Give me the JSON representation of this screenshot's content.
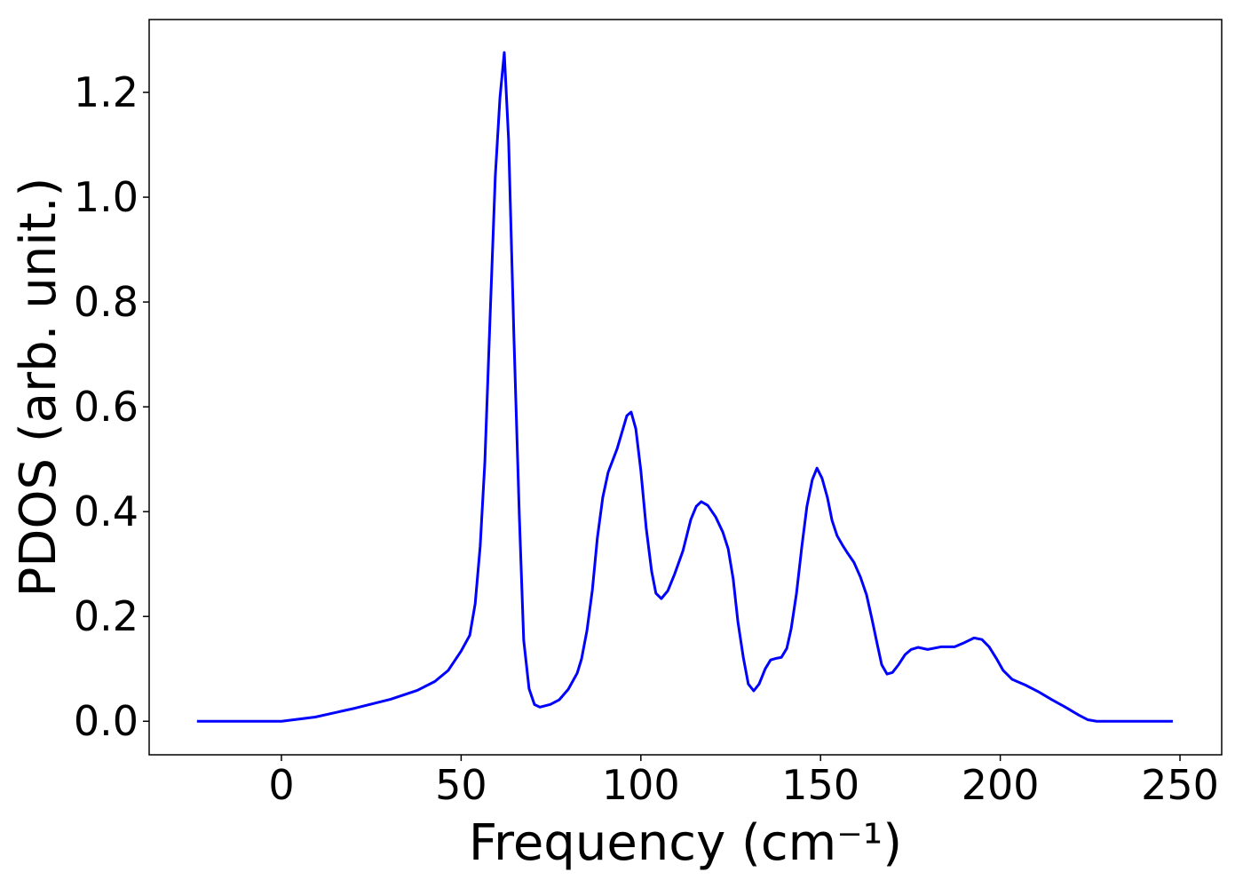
{
  "chart_data": {
    "type": "line",
    "xlabel": "Frequency (cm⁻¹)",
    "ylabel": "PDOS (arb. unit.)",
    "xlim": [
      -36.8,
      261.6
    ],
    "ylim": [
      -0.064,
      1.339
    ],
    "xticks": [
      0,
      50,
      100,
      150,
      200,
      250
    ],
    "yticks": [
      {
        "value": 0,
        "label": "0.0"
      },
      {
        "value": 0.2,
        "label": "0.2"
      },
      {
        "value": 0.4,
        "label": "0.4"
      },
      {
        "value": 0.6,
        "label": "0.6"
      },
      {
        "value": 0.8,
        "label": "0.8"
      },
      {
        "value": 1.0,
        "label": "1.0"
      },
      {
        "value": 1.2,
        "label": "1.2"
      }
    ],
    "grid": false,
    "series": [
      {
        "color": "#0000ff",
        "x": [
          -23.5,
          0,
          9.4,
          20.5,
          30.4,
          37.8,
          42.7,
          46.4,
          50,
          52.4,
          53.9,
          55.3,
          56.6,
          58.1,
          59.5,
          60.8,
          62.0,
          63.2,
          64.7,
          66.2,
          67.4,
          68.9,
          70.4,
          71.9,
          74.8,
          77.3,
          79.8,
          82.3,
          83.5,
          85.0,
          86.5,
          87.9,
          89.4,
          90.9,
          93.4,
          96.1,
          97.3,
          98.6,
          100.0,
          101.5,
          103.0,
          104.2,
          105.7,
          107.5,
          109.4,
          111.7,
          113.9,
          115.4,
          116.8,
          118.6,
          120.8,
          122.8,
          124.3,
          125.7,
          127.0,
          128.5,
          129.9,
          131.4,
          132.9,
          134.6,
          136.1,
          137.6,
          139.1,
          140.6,
          141.8,
          143.3,
          144.8,
          146.2,
          147.7,
          149.0,
          150.4,
          151.9,
          153.2,
          154.6,
          156.1,
          157.6,
          159.3,
          161.1,
          162.8,
          164.3,
          165.8,
          167.0,
          168.5,
          170.0,
          171.7,
          173.5,
          175.2,
          177.1,
          179.8,
          183.5,
          187.3,
          189.7,
          192.7,
          194.9,
          196.9,
          198.9,
          200.8,
          203.3,
          207.0,
          210.7,
          214.4,
          218.1,
          221.8,
          224.3,
          226.8,
          248
        ],
        "values": [
          0,
          0,
          0.008,
          0.025,
          0.042,
          0.059,
          0.076,
          0.097,
          0.134,
          0.164,
          0.224,
          0.334,
          0.495,
          0.78,
          1.04,
          1.19,
          1.276,
          1.11,
          0.73,
          0.39,
          0.155,
          0.062,
          0.032,
          0.027,
          0.032,
          0.041,
          0.061,
          0.092,
          0.119,
          0.173,
          0.25,
          0.35,
          0.427,
          0.475,
          0.52,
          0.583,
          0.59,
          0.558,
          0.478,
          0.368,
          0.286,
          0.244,
          0.234,
          0.249,
          0.281,
          0.325,
          0.385,
          0.41,
          0.419,
          0.412,
          0.39,
          0.361,
          0.329,
          0.271,
          0.19,
          0.122,
          0.071,
          0.058,
          0.071,
          0.1,
          0.117,
          0.12,
          0.122,
          0.139,
          0.176,
          0.244,
          0.334,
          0.41,
          0.461,
          0.483,
          0.464,
          0.427,
          0.383,
          0.354,
          0.336,
          0.32,
          0.303,
          0.275,
          0.241,
          0.195,
          0.146,
          0.108,
          0.09,
          0.093,
          0.108,
          0.127,
          0.137,
          0.141,
          0.137,
          0.142,
          0.142,
          0.149,
          0.159,
          0.156,
          0.142,
          0.12,
          0.097,
          0.08,
          0.069,
          0.056,
          0.041,
          0.027,
          0.012,
          0.003,
          0,
          0
        ]
      }
    ]
  }
}
